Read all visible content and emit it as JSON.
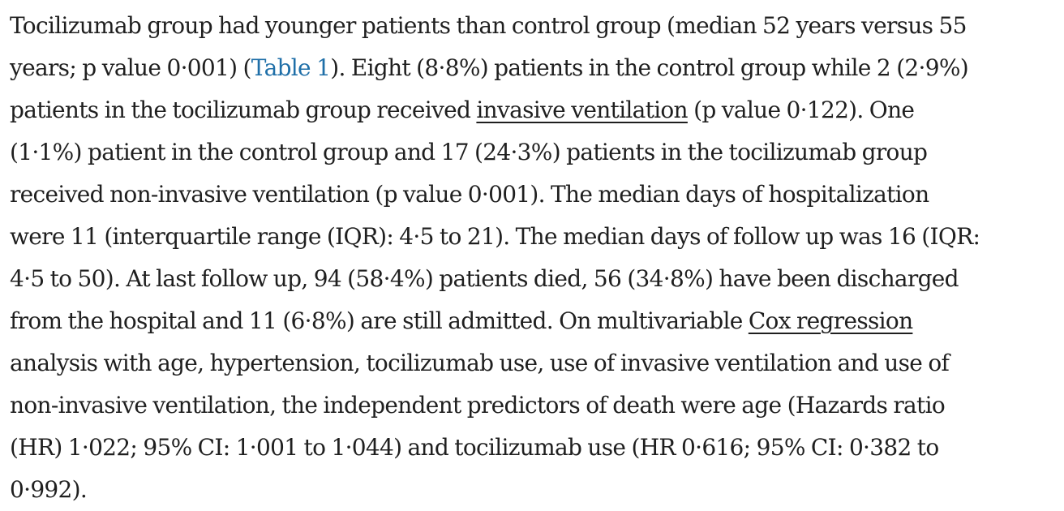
{
  "article": {
    "lines": [
      {
        "segments": [
          {
            "text": "Tocilizumab group had younger patients than control group (median 52 years versus 55"
          }
        ]
      },
      {
        "segments": [
          {
            "text": "years; p value 0·001) ("
          },
          {
            "text": "Table 1",
            "link": "ref"
          },
          {
            "text": "). Eight (8·8%) patients in the control group while 2 (2·9%)"
          }
        ]
      },
      {
        "segments": [
          {
            "text": "patients in the tocilizumab group received "
          },
          {
            "text": "invasive ventilation",
            "link": "term"
          },
          {
            "text": " (p value 0·122). One"
          }
        ]
      },
      {
        "segments": [
          {
            "text": "(1·1%) patient in the control group and 17 (24·3%) patients in the tocilizumab group"
          }
        ]
      },
      {
        "segments": [
          {
            "text": "received non-invasive ventilation (p value 0·001). The median days of hospitalization"
          }
        ]
      },
      {
        "segments": [
          {
            "text": "were 11 (interquartile range (IQR): 4·5 to 21). The median days of follow up was 16 (IQR:"
          }
        ]
      },
      {
        "segments": [
          {
            "text": "4·5 to 50). At last follow up, 94 (58·4%) patients died, 56 (34·8%) have been discharged"
          }
        ]
      },
      {
        "segments": [
          {
            "text": "from the hospital and 11 (6·8%) are still admitted. On multivariable "
          },
          {
            "text": "Cox regression",
            "link": "term"
          }
        ]
      },
      {
        "segments": [
          {
            "text": "analysis with age, hypertension, tocilizumab use, use of invasive ventilation and use of"
          }
        ]
      },
      {
        "segments": [
          {
            "text": "non-invasive ventilation, the independent predictors of death were age (Hazards ratio"
          }
        ]
      },
      {
        "segments": [
          {
            "text": "(HR) 1·022; 95% CI: 1·001 to 1·044) and tocilizumab use (HR 0·616; 95% CI: 0·382 to"
          }
        ]
      },
      {
        "segments": [
          {
            "text": "0·992)."
          }
        ]
      }
    ]
  }
}
